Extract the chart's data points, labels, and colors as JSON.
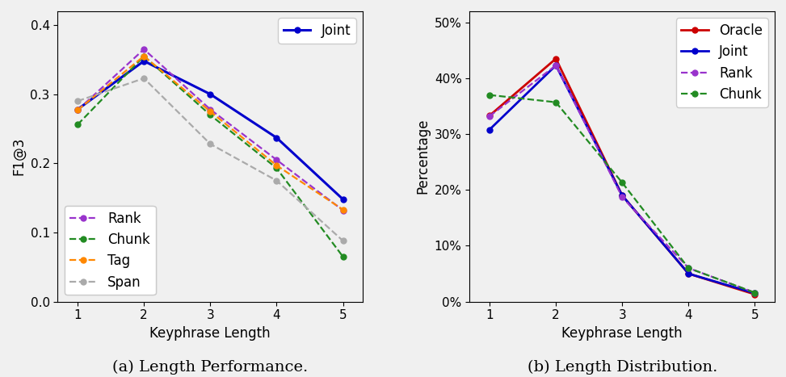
{
  "x": [
    1,
    2,
    3,
    4,
    5
  ],
  "left_series": {
    "Joint": [
      0.278,
      0.348,
      0.3,
      0.237,
      0.148
    ],
    "Rank": [
      0.277,
      0.365,
      0.278,
      0.205,
      0.132
    ],
    "Chunk": [
      0.256,
      0.355,
      0.27,
      0.193,
      0.065
    ],
    "Tag": [
      0.277,
      0.355,
      0.275,
      0.197,
      0.133
    ],
    "Span": [
      0.29,
      0.323,
      0.228,
      0.175,
      0.088
    ]
  },
  "left_styles": {
    "Joint": {
      "color": "#0000cc",
      "linestyle": "-",
      "marker": "o",
      "linewidth": 2.2,
      "markersize": 5
    },
    "Rank": {
      "color": "#9933cc",
      "linestyle": "--",
      "marker": "o",
      "linewidth": 1.6,
      "markersize": 5
    },
    "Chunk": {
      "color": "#228B22",
      "linestyle": "--",
      "marker": "o",
      "linewidth": 1.6,
      "markersize": 5
    },
    "Tag": {
      "color": "#ff8800",
      "linestyle": "--",
      "marker": "o",
      "linewidth": 1.6,
      "markersize": 5
    },
    "Span": {
      "color": "#aaaaaa",
      "linestyle": "--",
      "marker": "o",
      "linewidth": 1.6,
      "markersize": 5
    }
  },
  "left_ylabel": "F1@3",
  "left_xlabel": "Keyphrase Length",
  "left_caption": "(a) Length Performance.",
  "left_ylim": [
    0.0,
    0.42
  ],
  "left_yticks": [
    0.0,
    0.1,
    0.2,
    0.3,
    0.4
  ],
  "right_series": {
    "Oracle": [
      0.333,
      0.435,
      0.19,
      0.05,
      0.013
    ],
    "Joint": [
      0.308,
      0.423,
      0.19,
      0.05,
      0.015
    ],
    "Rank": [
      0.332,
      0.423,
      0.187,
      0.06,
      0.016
    ],
    "Chunk": [
      0.37,
      0.357,
      0.213,
      0.06,
      0.016
    ]
  },
  "right_styles": {
    "Oracle": {
      "color": "#cc0000",
      "linestyle": "-",
      "marker": "o",
      "linewidth": 2.0,
      "markersize": 5
    },
    "Joint": {
      "color": "#0000cc",
      "linestyle": "-",
      "marker": "o",
      "linewidth": 2.0,
      "markersize": 5
    },
    "Rank": {
      "color": "#9933cc",
      "linestyle": "--",
      "marker": "o",
      "linewidth": 1.6,
      "markersize": 5
    },
    "Chunk": {
      "color": "#228B22",
      "linestyle": "--",
      "marker": "o",
      "linewidth": 1.6,
      "markersize": 5
    }
  },
  "right_legend_order": [
    "Oracle",
    "Joint",
    "Rank",
    "Chunk"
  ],
  "right_ylabel": "Percentage",
  "right_xlabel": "Keyphrase Length",
  "right_caption": "(b) Length Distribution.",
  "right_ylim": [
    0.0,
    0.52
  ],
  "right_yticks": [
    0.0,
    0.1,
    0.2,
    0.3,
    0.4,
    0.5
  ],
  "bg_color": "#f0f0f0"
}
